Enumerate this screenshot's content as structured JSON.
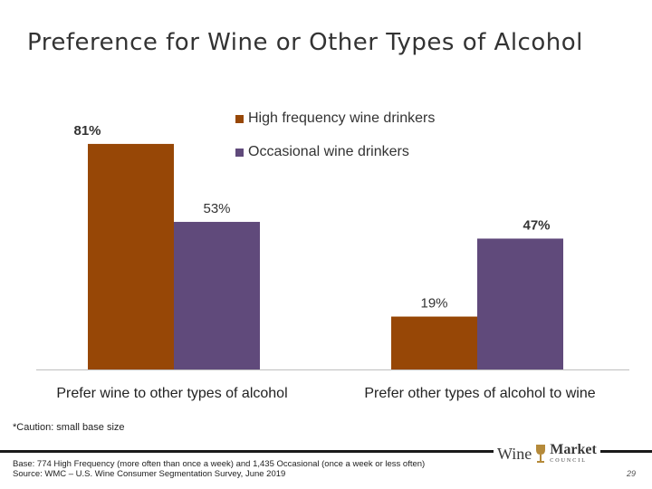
{
  "slide": {
    "title": "Preference for Wine or Other Types of Alcohol",
    "caution": "*Caution: small base size",
    "footer_line1": "Base: 774 High Frequency (more often than once a week) and 1,435 Occasional (once a week or less often)",
    "footer_line2": "Source: WMC – U.S. Wine Consumer Segmentation Survey, June 2019",
    "page_number": "29"
  },
  "logo": {
    "word1": "Wine",
    "word2": "Market",
    "word3": "COUNCIL"
  },
  "chart_data": {
    "type": "bar",
    "categories": [
      "Prefer wine to other types of alcohol",
      "Prefer other types of alcohol to wine"
    ],
    "series": [
      {
        "name": "High frequency wine drinkers",
        "values": [
          81,
          19
        ],
        "labels": [
          "81%",
          "19%"
        ],
        "color": "#974706"
      },
      {
        "name": "Occasional wine drinkers",
        "values": [
          53,
          47
        ],
        "labels": [
          "53%",
          "47%"
        ],
        "color": "#604A7B"
      }
    ],
    "ylim": [
      0,
      100
    ],
    "grid": false,
    "legend": "top-center"
  }
}
